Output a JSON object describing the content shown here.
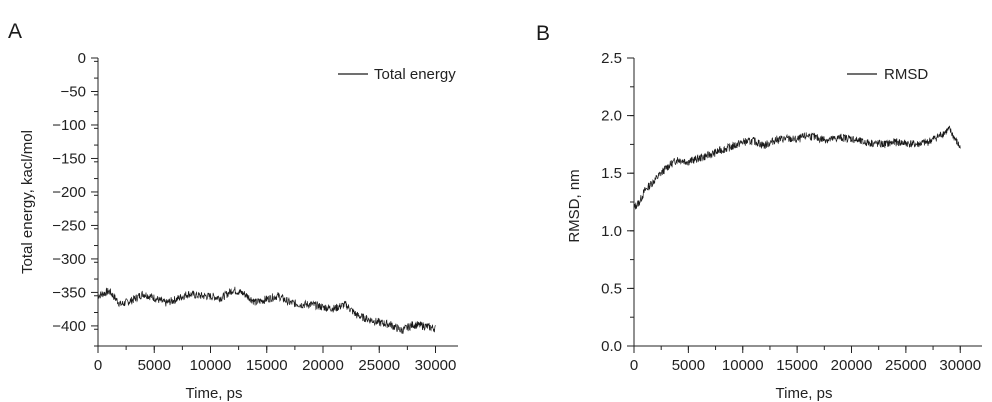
{
  "chart_data": [
    {
      "panel_label": "A",
      "type": "line",
      "xlabel": "Time, ps",
      "ylabel": "Total energy, kacl/mol",
      "xlim": [
        0,
        32000
      ],
      "ylim": [
        -430,
        0
      ],
      "xticks": [
        "0",
        "5000",
        "10000",
        "15000",
        "20000",
        "25000",
        "30000"
      ],
      "xtick_values": [
        0,
        5000,
        10000,
        15000,
        20000,
        25000,
        30000
      ],
      "yticks": [
        "0",
        "−50",
        "−100",
        "−150",
        "−200",
        "−250",
        "−300",
        "−350",
        "−400"
      ],
      "ytick_values": [
        0,
        -50,
        -100,
        -150,
        -200,
        -250,
        -300,
        -350,
        -400
      ],
      "grid": false,
      "legend_position": "top-right",
      "series": [
        {
          "name": "Total energy",
          "color": "#1a1a1a",
          "noise": 6,
          "x": [
            0,
            1000,
            2000,
            3000,
            4000,
            5000,
            6000,
            7000,
            8000,
            9000,
            10000,
            11000,
            12000,
            13000,
            14000,
            15000,
            16000,
            17000,
            18000,
            19000,
            20000,
            21000,
            22000,
            23000,
            24000,
            25000,
            26000,
            27000,
            28000,
            29000,
            30000
          ],
          "y": [
            -355,
            -348,
            -368,
            -362,
            -352,
            -358,
            -366,
            -360,
            -352,
            -355,
            -356,
            -358,
            -346,
            -352,
            -365,
            -360,
            -355,
            -365,
            -368,
            -368,
            -372,
            -374,
            -368,
            -384,
            -390,
            -395,
            -398,
            -407,
            -398,
            -400,
            -404
          ]
        }
      ]
    },
    {
      "panel_label": "B",
      "type": "line",
      "xlabel": "Time, ps",
      "ylabel": "RMSD, nm",
      "xlim": [
        0,
        32000
      ],
      "ylim": [
        0,
        2.5
      ],
      "xticks": [
        "0",
        "5000",
        "10000",
        "15000",
        "20000",
        "25000",
        "30000"
      ],
      "xtick_values": [
        0,
        5000,
        10000,
        15000,
        20000,
        25000,
        30000
      ],
      "yticks": [
        "0.0",
        "0.5",
        "1.0",
        "1.5",
        "2.0",
        "2.5"
      ],
      "ytick_values": [
        0,
        0.5,
        1.0,
        1.5,
        2.0,
        2.5
      ],
      "grid": false,
      "legend_position": "top-right",
      "series": [
        {
          "name": "RMSD",
          "color": "#1a1a1a",
          "noise": 0.035,
          "x": [
            0,
            500,
            1000,
            2000,
            3000,
            4000,
            5000,
            6000,
            7000,
            8000,
            9000,
            10000,
            11000,
            12000,
            13000,
            14000,
            15000,
            16000,
            17000,
            18000,
            19000,
            20000,
            21000,
            22000,
            23000,
            24000,
            25000,
            26000,
            27000,
            28000,
            29000,
            30000
          ],
          "y": [
            1.2,
            1.25,
            1.35,
            1.45,
            1.55,
            1.62,
            1.6,
            1.63,
            1.66,
            1.7,
            1.73,
            1.77,
            1.78,
            1.74,
            1.79,
            1.8,
            1.79,
            1.83,
            1.8,
            1.79,
            1.81,
            1.8,
            1.77,
            1.76,
            1.75,
            1.77,
            1.76,
            1.75,
            1.77,
            1.82,
            1.88,
            1.72
          ]
        }
      ]
    }
  ]
}
